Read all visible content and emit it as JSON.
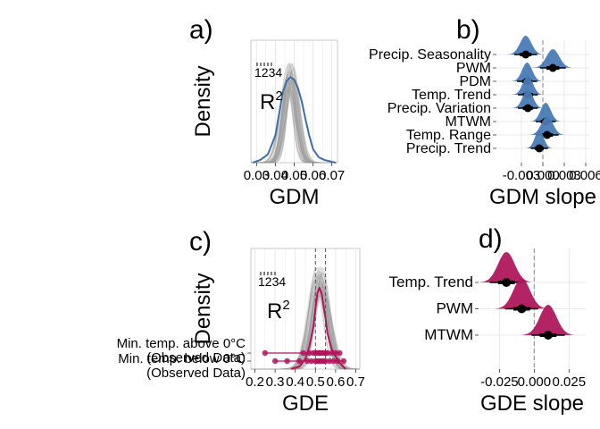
{
  "colors": {
    "gdm": "#3f6ea6",
    "gdm_fill": "#4a7bb7",
    "gde": "#b3125a",
    "gde_fill": "#b0175c",
    "density_draws": "#9a9a9a",
    "point": "#000000",
    "grid": "#e4e4e4",
    "panel_border": "#bbbbbb",
    "zero_line": "#9a9a9a"
  },
  "chart_data": [
    {
      "panel": "a)",
      "type": "area",
      "xlabel": "GDM",
      "ylabel": "Density",
      "xlim": [
        0.027,
        0.073
      ],
      "x_ticks": [
        "0.03",
        "0.04",
        "0.05",
        "0.06",
        "0.07"
      ],
      "x_tick_values": [
        0.03,
        0.04,
        0.05,
        0.06,
        0.07
      ],
      "annotation": "R2",
      "rug_label": "0.01 0.02 0.03 0.04 0.05",
      "observed_density": {
        "x": [
          0.028,
          0.032,
          0.036,
          0.04,
          0.042,
          0.044,
          0.046,
          0.048,
          0.05,
          0.052,
          0.054,
          0.056,
          0.058,
          0.06,
          0.063,
          0.066,
          0.069,
          0.072
        ],
        "y": [
          0.0,
          0.02,
          0.06,
          0.2,
          0.36,
          0.52,
          0.6,
          0.63,
          0.61,
          0.55,
          0.45,
          0.32,
          0.2,
          0.1,
          0.04,
          0.02,
          0.01,
          0.0
        ]
      },
      "simulated_density_peak": 0.74
    },
    {
      "panel": "b)",
      "type": "scatter",
      "xlabel": "GDM slope",
      "xlim": [
        -0.0065,
        0.0065
      ],
      "x_ticks": [
        "-0.003",
        "0.000",
        "0.003",
        "0.006"
      ],
      "x_tick_values": [
        -0.003,
        0.0,
        0.003,
        0.006
      ],
      "categories": [
        "Precip. Seasonality",
        "PWM",
        "PDM",
        "Temp. Trend",
        "Precip. Variation",
        "MTWM",
        "Temp. Range",
        "Precip. Trend"
      ],
      "medians": [
        -0.0024,
        0.0014,
        -0.0022,
        -0.0021,
        -0.0021,
        0.0004,
        0.0006,
        -0.0005
      ],
      "sd": [
        0.0008,
        0.0009,
        0.0007,
        0.0007,
        0.0007,
        0.0007,
        0.0008,
        0.0006
      ],
      "zero_line": 0.0
    },
    {
      "panel": "c)",
      "type": "area",
      "xlabel": "GDE",
      "ylabel": "Density",
      "xlim": [
        0.18,
        0.72
      ],
      "x_ticks": [
        "0.2",
        "0.3",
        "0.4",
        "0.5",
        "0.6",
        "0.7"
      ],
      "x_tick_values": [
        0.2,
        0.3,
        0.4,
        0.5,
        0.6,
        0.7
      ],
      "annotation": "R2",
      "rug_label": "0.01 0.02 0.03 0.04 0.05",
      "reference_lines": [
        0.5,
        0.55
      ],
      "observed_density": {
        "x": [
          0.38,
          0.42,
          0.45,
          0.47,
          0.49,
          0.5,
          0.51,
          0.52,
          0.53,
          0.54,
          0.55,
          0.56,
          0.58,
          0.6,
          0.62,
          0.65
        ],
        "y": [
          0.0,
          0.02,
          0.08,
          0.18,
          0.34,
          0.48,
          0.6,
          0.64,
          0.6,
          0.5,
          0.4,
          0.28,
          0.16,
          0.1,
          0.05,
          0.0
        ]
      },
      "simulated_density_peak": 0.82,
      "groups": [
        "Min. temp. above 0°C\n(Observed Data)",
        "Min. temp. below 0°C\n(Observed Data)"
      ],
      "group_labels": [
        {
          "line1": "Min. temp. above 0°C",
          "line2": "(Observed Data)"
        },
        {
          "line1": "Min. temp. below 0°C",
          "line2": "(Observed Data)"
        }
      ],
      "group_points": [
        [
          0.25,
          0.44,
          0.47,
          0.49,
          0.5,
          0.51,
          0.52,
          0.52,
          0.53,
          0.54,
          0.55,
          0.56,
          0.58,
          0.6,
          0.62
        ],
        [
          0.3,
          0.36,
          0.42,
          0.46,
          0.48,
          0.5,
          0.51,
          0.52,
          0.53,
          0.54,
          0.55,
          0.57,
          0.59,
          0.61,
          0.64
        ]
      ]
    },
    {
      "panel": "d)",
      "type": "scatter",
      "xlabel": "GDE slope",
      "xlim": [
        -0.04,
        0.037
      ],
      "x_ticks": [
        "-0.025",
        "0.000",
        "0.025"
      ],
      "x_tick_values": [
        -0.025,
        0.0,
        0.025
      ],
      "categories": [
        "Temp. Trend",
        "PWM",
        "MTWM"
      ],
      "medians": [
        -0.02,
        -0.009,
        0.01
      ],
      "sd": [
        0.006,
        0.006,
        0.006
      ],
      "zero_line": 0.0
    }
  ]
}
